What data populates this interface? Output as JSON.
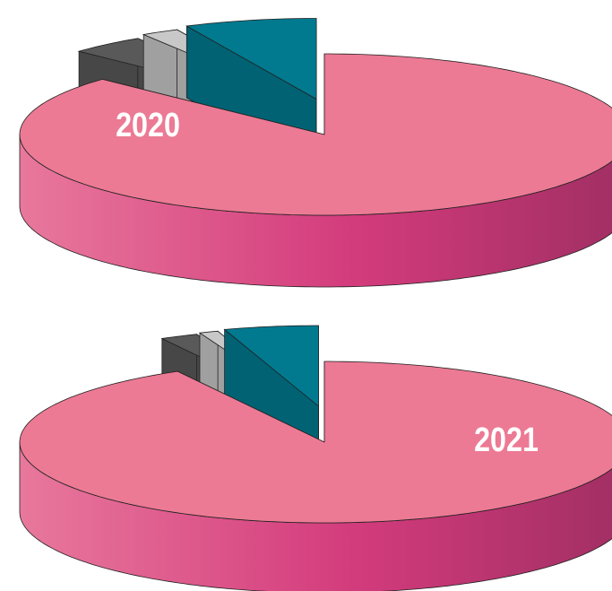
{
  "chart_data": [
    {
      "type": "pie",
      "title": "2020",
      "values": [
        87,
        4,
        2,
        7
      ],
      "colors": [
        "#ec7a94",
        "#595959",
        "#c8c8c8",
        "#017a90"
      ]
    },
    {
      "type": "pie",
      "title": "2021",
      "values": [
        92,
        2,
        1,
        5
      ],
      "colors": [
        "#ec7a94",
        "#595959",
        "#c8c8c8",
        "#017a90"
      ]
    }
  ]
}
